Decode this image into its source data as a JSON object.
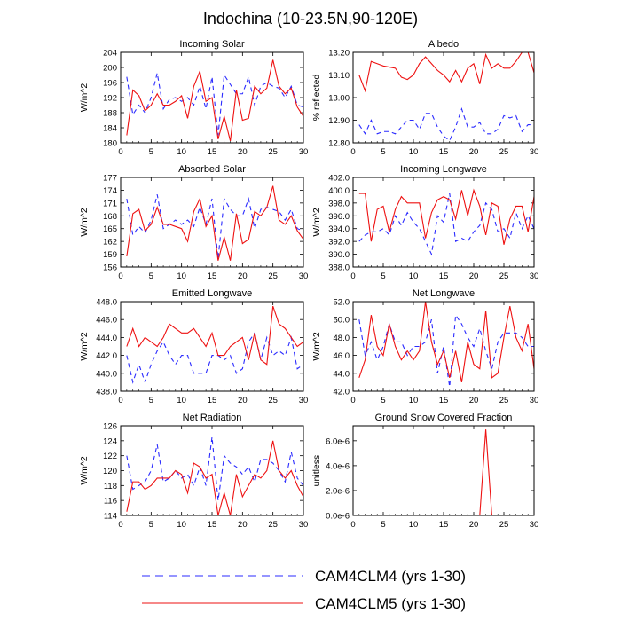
{
  "title": "Indochina (10-23.5N,90-120E)",
  "colors": {
    "clm4": "#2b2bff",
    "clm5": "#ee1111",
    "axis": "#000000"
  },
  "legend": [
    {
      "label": "CAM4CLM4 (yrs 1-30)",
      "style": "dashed",
      "color": "#2b2bff"
    },
    {
      "label": "CAM4CLM5 (yrs 1-30)",
      "style": "solid",
      "color": "#ee1111"
    }
  ],
  "chart_data": [
    {
      "type": "line",
      "title": "Incoming Solar",
      "ylabel": "W/m^2",
      "xlim": [
        0,
        30
      ],
      "ylim": [
        180,
        204
      ],
      "xticks": [
        0,
        5,
        10,
        15,
        20,
        25,
        30
      ],
      "xticklabels": [
        "0",
        "5",
        "10",
        "15",
        "20",
        "25",
        "30"
      ],
      "yticks": [
        180,
        184,
        188,
        192,
        196,
        200,
        204
      ],
      "yticklabels": [
        "180",
        "184",
        "188",
        "192",
        "196",
        "200",
        "204"
      ],
      "x": [
        1,
        2,
        3,
        4,
        5,
        6,
        7,
        8,
        9,
        10,
        11,
        12,
        13,
        14,
        15,
        16,
        17,
        18,
        19,
        20,
        21,
        22,
        23,
        24,
        25,
        26,
        27,
        28,
        29,
        30
      ],
      "series": [
        {
          "name": "CAM4CLM4 (yrs 1-30)",
          "values": [
            197.5,
            187.5,
            190,
            188,
            192,
            198.5,
            189,
            191.5,
            192,
            191,
            192,
            190,
            195,
            189,
            197.5,
            182,
            198,
            195.5,
            193,
            193,
            197.5,
            190,
            195,
            196,
            195,
            194.5,
            192,
            195,
            190,
            189.5
          ]
        },
        {
          "name": "CAM4CLM5 (yrs 1-30)",
          "values": [
            182,
            194,
            192.5,
            188.5,
            190,
            193,
            190,
            190,
            191,
            192.5,
            186.5,
            195,
            199,
            191,
            192,
            181,
            187,
            180.5,
            194,
            186,
            186.5,
            195,
            193,
            194.5,
            202,
            195,
            193,
            194.5,
            189.5,
            187
          ]
        }
      ]
    },
    {
      "type": "line",
      "title": "Albedo",
      "ylabel": "% reflected",
      "xlim": [
        0,
        30
      ],
      "ylim": [
        12.8,
        13.2
      ],
      "xticks": [
        0,
        5,
        10,
        15,
        20,
        25,
        30
      ],
      "xticklabels": [
        "0",
        "5",
        "10",
        "15",
        "20",
        "25",
        "30"
      ],
      "yticks": [
        12.8,
        12.9,
        13.0,
        13.1,
        13.2
      ],
      "yticklabels": [
        "12.80",
        "12.90",
        "13.00",
        "13.10",
        "13.20"
      ],
      "x": [
        1,
        2,
        3,
        4,
        5,
        6,
        7,
        8,
        9,
        10,
        11,
        12,
        13,
        14,
        15,
        16,
        17,
        18,
        19,
        20,
        21,
        22,
        23,
        24,
        25,
        26,
        27,
        28,
        29,
        30
      ],
      "series": [
        {
          "name": "CAM4CLM4 (yrs 1-30)",
          "values": [
            12.88,
            12.84,
            12.9,
            12.84,
            12.85,
            12.85,
            12.84,
            12.87,
            12.9,
            12.9,
            12.86,
            12.93,
            12.93,
            12.87,
            12.83,
            12.81,
            12.87,
            12.95,
            12.87,
            12.87,
            12.89,
            12.84,
            12.84,
            12.86,
            12.92,
            12.91,
            12.92,
            12.85,
            12.88,
            12.88
          ]
        },
        {
          "name": "CAM4CLM5 (yrs 1-30)",
          "values": [
            13.1,
            13.03,
            13.16,
            13.15,
            13.14,
            13.135,
            13.13,
            13.09,
            13.08,
            13.1,
            13.15,
            13.18,
            13.15,
            13.12,
            13.1,
            13.07,
            13.12,
            13.07,
            13.13,
            13.15,
            13.06,
            13.19,
            13.13,
            13.15,
            13.13,
            13.13,
            13.16,
            13.2,
            13.2,
            13.11
          ]
        }
      ]
    },
    {
      "type": "line",
      "title": "Absorbed Solar",
      "ylabel": "W/m^2",
      "xlim": [
        0,
        30
      ],
      "ylim": [
        156,
        177
      ],
      "xticks": [
        0,
        5,
        10,
        15,
        20,
        25,
        30
      ],
      "xticklabels": [
        "0",
        "5",
        "10",
        "15",
        "20",
        "25",
        "30"
      ],
      "yticks": [
        156,
        159,
        162,
        165,
        168,
        171,
        174,
        177
      ],
      "yticklabels": [
        "156",
        "159",
        "162",
        "165",
        "168",
        "171",
        "174",
        "177"
      ],
      "x": [
        1,
        2,
        3,
        4,
        5,
        6,
        7,
        8,
        9,
        10,
        11,
        12,
        13,
        14,
        15,
        16,
        17,
        18,
        19,
        20,
        21,
        22,
        23,
        24,
        25,
        26,
        27,
        28,
        29,
        30
      ],
      "series": [
        {
          "name": "CAM4CLM4 (yrs 1-30)",
          "values": [
            172,
            163.5,
            165.5,
            164,
            167,
            173,
            165,
            166,
            167,
            166,
            167,
            165.5,
            170,
            166,
            172,
            158,
            172,
            169.5,
            168,
            168,
            172,
            165,
            169.5,
            170,
            169.5,
            169,
            167,
            169.5,
            165,
            164.5
          ]
        },
        {
          "name": "CAM4CLM5 (yrs 1-30)",
          "values": [
            158.5,
            168.5,
            169.5,
            164.5,
            166,
            170,
            166,
            166,
            165.5,
            165,
            162,
            169,
            172,
            165.5,
            168,
            157.5,
            163,
            157.5,
            168.5,
            161.5,
            162.5,
            169,
            168,
            170,
            175,
            167,
            166,
            168,
            164.5,
            162.5
          ]
        }
      ]
    },
    {
      "type": "line",
      "title": "Incoming Longwave",
      "ylabel": "W/m^2",
      "xlim": [
        0,
        30
      ],
      "ylim": [
        388,
        402
      ],
      "xticks": [
        0,
        5,
        10,
        15,
        20,
        25,
        30
      ],
      "xticklabels": [
        "0",
        "5",
        "10",
        "15",
        "20",
        "25",
        "30"
      ],
      "yticks": [
        388,
        390,
        392,
        394,
        396,
        398,
        400,
        402
      ],
      "yticklabels": [
        "388.0",
        "390.0",
        "392.0",
        "394.0",
        "396.0",
        "398.0",
        "400.0",
        "402.0"
      ],
      "x": [
        1,
        2,
        3,
        4,
        5,
        6,
        7,
        8,
        9,
        10,
        11,
        12,
        13,
        14,
        15,
        16,
        17,
        18,
        19,
        20,
        21,
        22,
        23,
        24,
        25,
        26,
        27,
        28,
        29,
        30
      ],
      "series": [
        {
          "name": "CAM4CLM4 (yrs 1-30)",
          "values": [
            392,
            393,
            393.5,
            393.5,
            394,
            393,
            396,
            394.5,
            396.5,
            395,
            394,
            392,
            390,
            396,
            395,
            399.5,
            392,
            392.5,
            392,
            393.5,
            394.5,
            398,
            397,
            393.5,
            394,
            392.5,
            396.5,
            394,
            396,
            394
          ]
        },
        {
          "name": "CAM4CLM5 (yrs 1-30)",
          "values": [
            399.5,
            399.5,
            392,
            397,
            397.5,
            393.5,
            397,
            399,
            398,
            398,
            398,
            392.5,
            396.5,
            398.5,
            399,
            398.5,
            395.5,
            400,
            396,
            400,
            397.5,
            393,
            398,
            397.5,
            391.5,
            395.5,
            397.5,
            397.5,
            393.5,
            399
          ]
        }
      ]
    },
    {
      "type": "line",
      "title": "Emitted Longwave",
      "ylabel": "W/m^2",
      "xlim": [
        0,
        30
      ],
      "ylim": [
        438,
        448
      ],
      "xticks": [
        0,
        5,
        10,
        15,
        20,
        25,
        30
      ],
      "xticklabels": [
        "0",
        "5",
        "10",
        "15",
        "20",
        "25",
        "30"
      ],
      "yticks": [
        438,
        440,
        442,
        444,
        446,
        448
      ],
      "yticklabels": [
        "438.0",
        "440.0",
        "442.0",
        "444.0",
        "446.0",
        "448.0"
      ],
      "x": [
        1,
        2,
        3,
        4,
        5,
        6,
        7,
        8,
        9,
        10,
        11,
        12,
        13,
        14,
        15,
        16,
        17,
        18,
        19,
        20,
        21,
        22,
        23,
        24,
        25,
        26,
        27,
        28,
        29,
        30
      ],
      "series": [
        {
          "name": "CAM4CLM4 (yrs 1-30)",
          "values": [
            442,
            439,
            441,
            439,
            441,
            442.5,
            443.5,
            442,
            441,
            442,
            442,
            440,
            440,
            440,
            442,
            442,
            441.5,
            442,
            440,
            440.5,
            443.5,
            444.5,
            441.5,
            444,
            442,
            442.5,
            442,
            444,
            440.5,
            441
          ]
        },
        {
          "name": "CAM4CLM5 (yrs 1-30)",
          "values": [
            443,
            445,
            443,
            444,
            443.5,
            443,
            444,
            445.5,
            445,
            444.5,
            444.5,
            445,
            444,
            443,
            444.5,
            442,
            442,
            443,
            443.5,
            444,
            441.5,
            444.5,
            441.5,
            441,
            447.5,
            445.5,
            445,
            444,
            443,
            443.5
          ]
        }
      ]
    },
    {
      "type": "line",
      "title": "Net Longwave",
      "ylabel": "W/m^2",
      "xlim": [
        0,
        30
      ],
      "ylim": [
        42,
        52
      ],
      "xticks": [
        0,
        5,
        10,
        15,
        20,
        25,
        30
      ],
      "xticklabels": [
        "0",
        "5",
        "10",
        "15",
        "20",
        "25",
        "30"
      ],
      "yticks": [
        42,
        44,
        46,
        48,
        50,
        52
      ],
      "yticklabels": [
        "42.0",
        "44.0",
        "46.0",
        "48.0",
        "50.0",
        "52.0"
      ],
      "x": [
        1,
        2,
        3,
        4,
        5,
        6,
        7,
        8,
        9,
        10,
        11,
        12,
        13,
        14,
        15,
        16,
        17,
        18,
        19,
        20,
        21,
        22,
        23,
        24,
        25,
        26,
        27,
        28,
        29,
        30
      ],
      "series": [
        {
          "name": "CAM4CLM4 (yrs 1-30)",
          "values": [
            50,
            46,
            47.5,
            45.5,
            47,
            49.5,
            47.5,
            47.5,
            46,
            47,
            47,
            47.5,
            50,
            44,
            47,
            42.5,
            50.5,
            49.5,
            48,
            47,
            49,
            46.5,
            44.5,
            47.5,
            48.5,
            48.5,
            48.5,
            48,
            47,
            47
          ]
        },
        {
          "name": "CAM4CLM5 (yrs 1-30)",
          "values": [
            43.5,
            45.5,
            50.5,
            47,
            46,
            49.5,
            47,
            45.5,
            46.5,
            45.5,
            46.5,
            52,
            47.5,
            45,
            46.5,
            43.5,
            46.5,
            43,
            47.5,
            45,
            44.5,
            51,
            43.5,
            44,
            48,
            51.5,
            48,
            46.5,
            49.5,
            44.5
          ]
        }
      ]
    },
    {
      "type": "line",
      "title": "Net Radiation",
      "ylabel": "W/m^2",
      "xlim": [
        0,
        30
      ],
      "ylim": [
        114,
        126
      ],
      "xticks": [
        0,
        5,
        10,
        15,
        20,
        25,
        30
      ],
      "xticklabels": [
        "0",
        "5",
        "10",
        "15",
        "20",
        "25",
        "30"
      ],
      "yticks": [
        114,
        116,
        118,
        120,
        122,
        124,
        126
      ],
      "yticklabels": [
        "114",
        "116",
        "118",
        "120",
        "122",
        "124",
        "126"
      ],
      "x": [
        1,
        2,
        3,
        4,
        5,
        6,
        7,
        8,
        9,
        10,
        11,
        12,
        13,
        14,
        15,
        16,
        17,
        18,
        19,
        20,
        21,
        22,
        23,
        24,
        25,
        26,
        27,
        28,
        29,
        30
      ],
      "series": [
        {
          "name": "CAM4CLM4 (yrs 1-30)",
          "values": [
            122,
            117.5,
            118,
            118.5,
            120,
            123.5,
            118.5,
            119,
            120,
            119,
            119.5,
            118,
            120.5,
            118,
            124.5,
            116,
            122,
            121,
            120.5,
            119.5,
            120.5,
            118.5,
            121.5,
            121.5,
            121,
            120,
            118.5,
            122.5,
            119,
            118
          ]
        },
        {
          "name": "CAM4CLM5 (yrs 1-30)",
          "values": [
            114.5,
            118.5,
            118.5,
            117.5,
            118,
            119,
            119,
            119,
            120,
            119.5,
            117,
            121,
            120.5,
            119,
            119.5,
            114,
            117,
            114,
            119.5,
            116.5,
            118,
            119.5,
            119,
            120,
            124,
            120,
            119,
            120,
            118,
            116.5
          ]
        }
      ]
    },
    {
      "type": "line",
      "title": "Ground Snow Covered Fraction",
      "ylabel": "unitless",
      "xlim": [
        0,
        30
      ],
      "ylim": [
        0,
        7.2e-06
      ],
      "xticks": [
        0,
        5,
        10,
        15,
        20,
        25,
        30
      ],
      "xticklabels": [
        "0",
        "5",
        "10",
        "15",
        "20",
        "25",
        "30"
      ],
      "yticks": [
        0,
        2e-06,
        4e-06,
        6e-06
      ],
      "yticklabels": [
        "0.0e-6",
        "2.0e-6",
        "4.0e-6",
        "6.0e-6"
      ],
      "x": [
        1,
        2,
        3,
        4,
        5,
        6,
        7,
        8,
        9,
        10,
        11,
        12,
        13,
        14,
        15,
        16,
        17,
        18,
        19,
        20,
        21,
        22,
        23,
        24,
        25,
        26,
        27,
        28,
        29,
        30
      ],
      "series": [
        {
          "name": "CAM4CLM4 (yrs 1-30)",
          "values": [
            0,
            0,
            0,
            0,
            0,
            0,
            0,
            0,
            0,
            0,
            0,
            0,
            0,
            0,
            0,
            0,
            0,
            0,
            0,
            0,
            0,
            0,
            0,
            0,
            0,
            0,
            0,
            0,
            0,
            0
          ]
        },
        {
          "name": "CAM4CLM5 (yrs 1-30)",
          "values": [
            0,
            0,
            0,
            0,
            0,
            0,
            0,
            0,
            0,
            0,
            0,
            0,
            0,
            0,
            0,
            0,
            0,
            0,
            0,
            0,
            0,
            6.9e-06,
            0,
            0,
            0,
            0,
            0,
            0,
            0,
            0
          ]
        }
      ]
    }
  ]
}
